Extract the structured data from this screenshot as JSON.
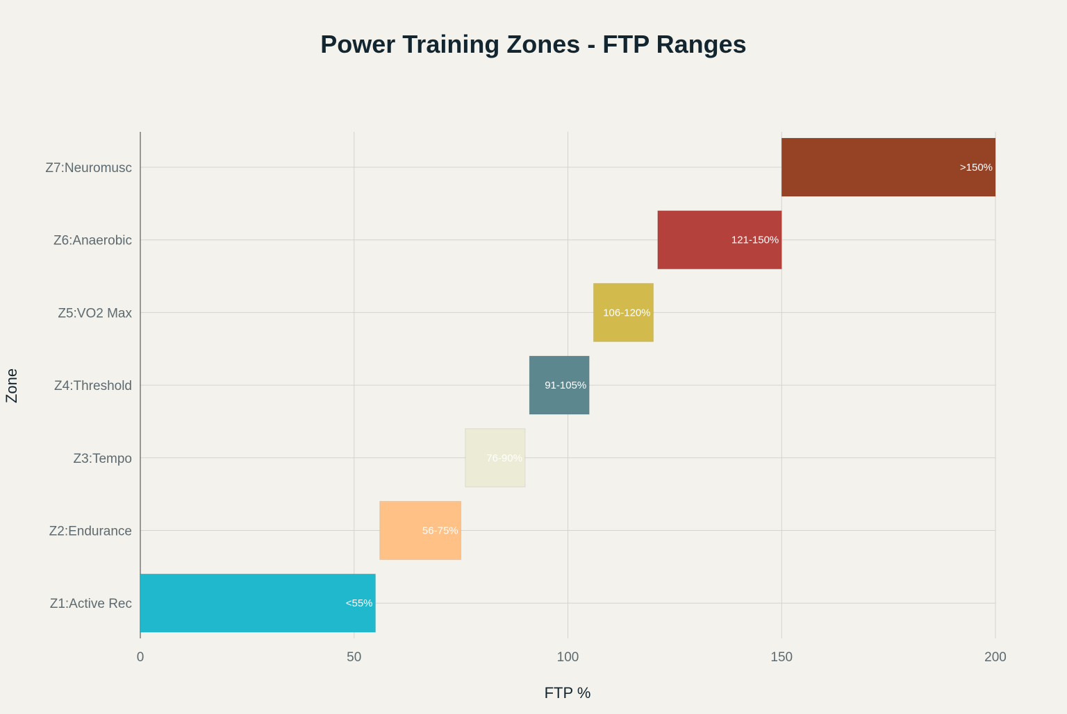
{
  "chart_data": {
    "type": "bar",
    "orientation": "horizontal",
    "title": "Power Training Zones - FTP Ranges",
    "xlabel": "FTP %",
    "ylabel": "Zone",
    "xlim": [
      0,
      200
    ],
    "xticks": [
      0,
      50,
      100,
      150,
      200
    ],
    "grid": true,
    "categories": [
      "Z1:Active Rec",
      "Z2:Endurance",
      "Z3:Tempo",
      "Z4:Threshold",
      "Z5:VO2 Max",
      "Z6:Anaerobic",
      "Z7:Neuromusc"
    ],
    "series": [
      {
        "ranges": [
          {
            "start": 0,
            "end": 55,
            "label": "<55%",
            "color": "#1fb8cd"
          },
          {
            "start": 56,
            "end": 75,
            "label": "56-75%",
            "color": "#ffc185"
          },
          {
            "start": 76,
            "end": 90,
            "label": "76-90%",
            "color": "#ecebd5"
          },
          {
            "start": 91,
            "end": 105,
            "label": "91-105%",
            "color": "#5d878f"
          },
          {
            "start": 106,
            "end": 120,
            "label": "106-120%",
            "color": "#d2ba4c"
          },
          {
            "start": 121,
            "end": 150,
            "label": "121-150%",
            "color": "#b4413c"
          },
          {
            "start": 150,
            "end": 200,
            "label": ">150%",
            "color": "#964325"
          }
        ]
      }
    ]
  }
}
